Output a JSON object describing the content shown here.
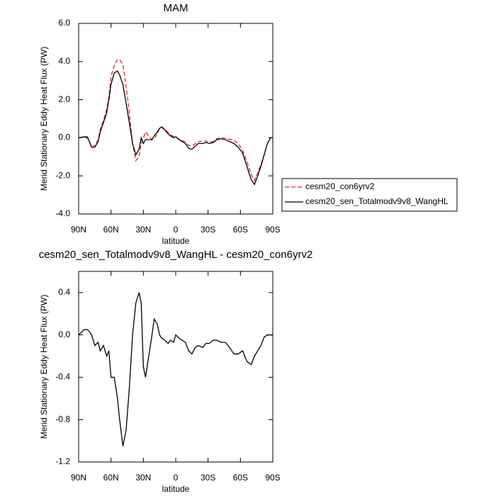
{
  "chart_data": [
    {
      "type": "line",
      "title": "MAM",
      "xlabel": "latitude",
      "ylabel": "Merid Stationary Eddy Heat Flux (PW)",
      "x": [
        90,
        85,
        82,
        80,
        78,
        75,
        72,
        70,
        67,
        64,
        62,
        60,
        57,
        54,
        52,
        49,
        46,
        43,
        40,
        37,
        34,
        32,
        30,
        28,
        25,
        22,
        20,
        17,
        15,
        13,
        10,
        7,
        5,
        2,
        0,
        -3,
        -6,
        -9,
        -12,
        -15,
        -18,
        -21,
        -25,
        -28,
        -31,
        -35,
        -38,
        -42,
        -46,
        -50,
        -54,
        -58,
        -62,
        -66,
        -70,
        -73,
        -76,
        -79,
        -82,
        -85,
        -88,
        -90
      ],
      "series": [
        {
          "name": "cesm20_con6yrv2",
          "color": "#e8262b",
          "dashed": true,
          "values": [
            0,
            0,
            0,
            -0.23,
            -0.5,
            -0.4,
            -0.13,
            0.45,
            0.9,
            1.5,
            2.15,
            3.2,
            3.8,
            4.1,
            4.1,
            3.85,
            2.7,
            1.3,
            -0.3,
            -1.2,
            -1.0,
            -0.3,
            0.0,
            0.3,
            0.1,
            -0.1,
            -0.05,
            0.2,
            0.5,
            0.58,
            0.45,
            0.28,
            0.15,
            0.07,
            0.05,
            -0.07,
            -0.15,
            -0.23,
            -0.4,
            -0.42,
            -0.33,
            -0.2,
            -0.18,
            -0.17,
            -0.22,
            -0.2,
            -0.05,
            0.02,
            -0.03,
            -0.08,
            -0.12,
            -0.32,
            -0.65,
            -1.25,
            -1.92,
            -2.25,
            -1.85,
            -1.4,
            -0.88,
            -0.3,
            0,
            0
          ]
        },
        {
          "name": "cesm20_sen_Totalmodv9v8_WangHL",
          "color": "#000000",
          "dashed": false,
          "values": [
            0,
            0.05,
            0.05,
            -0.2,
            -0.5,
            -0.5,
            -0.2,
            0.3,
            0.8,
            1.3,
            2.0,
            2.8,
            3.4,
            3.5,
            3.3,
            2.8,
            1.8,
            0.8,
            -0.3,
            -0.9,
            -0.6,
            0.0,
            -0.3,
            -0.1,
            -0.1,
            -0.1,
            0.1,
            0.3,
            0.5,
            0.55,
            0.4,
            0.2,
            0.1,
            0.0,
            0.05,
            -0.1,
            -0.2,
            -0.3,
            -0.55,
            -0.6,
            -0.45,
            -0.3,
            -0.3,
            -0.25,
            -0.3,
            -0.25,
            -0.1,
            -0.05,
            -0.1,
            -0.2,
            -0.3,
            -0.5,
            -0.8,
            -1.5,
            -2.2,
            -2.45,
            -2.0,
            -1.5,
            -0.9,
            -0.3,
            0,
            0
          ]
        }
      ],
      "xlim": [
        90,
        -90
      ],
      "xticks": [
        {
          "value": 90,
          "label": "90N"
        },
        {
          "value": 60,
          "label": "60N"
        },
        {
          "value": 30,
          "label": "30N"
        },
        0,
        {
          "value": -30,
          "label": "30S"
        },
        {
          "value": -60,
          "label": "60S"
        },
        {
          "value": -90,
          "label": "90S"
        }
      ],
      "ylim": [
        -4,
        6
      ],
      "yticks": [
        {
          "value": -4,
          "label": "-4.0"
        },
        {
          "value": -2,
          "label": "-2.0"
        },
        {
          "value": 0,
          "label": "0.0"
        },
        {
          "value": 2,
          "label": "2.0"
        },
        {
          "value": 4,
          "label": "4.0"
        },
        {
          "value": 6,
          "label": "6.0"
        }
      ],
      "legend": "right"
    },
    {
      "type": "line",
      "title": "cesm20_sen_Totalmodv9v8_WangHL - cesm20_con6yrv2",
      "xlabel": "latitude",
      "ylabel": "Merid Stationary Eddy Heat Flux (PW)",
      "x": [
        90,
        85,
        82,
        80,
        78,
        75,
        72,
        70,
        67,
        64,
        62,
        60,
        57,
        54,
        52,
        49,
        46,
        43,
        40,
        37,
        34,
        32,
        30,
        28,
        25,
        22,
        20,
        17,
        15,
        13,
        10,
        7,
        5,
        2,
        0,
        -3,
        -6,
        -9,
        -12,
        -15,
        -18,
        -21,
        -25,
        -28,
        -31,
        -35,
        -38,
        -42,
        -46,
        -50,
        -54,
        -58,
        -62,
        -66,
        -70,
        -73,
        -76,
        -79,
        -82,
        -85,
        -88,
        -90
      ],
      "series": [
        {
          "color": "#000000",
          "dashed": false,
          "values": [
            0.0,
            0.05,
            0.05,
            0.03,
            0.0,
            -0.1,
            -0.07,
            -0.15,
            -0.1,
            -0.2,
            -0.15,
            -0.4,
            -0.4,
            -0.6,
            -0.8,
            -1.05,
            -0.9,
            -0.5,
            0.0,
            0.3,
            0.4,
            0.3,
            -0.3,
            -0.4,
            -0.2,
            0.0,
            0.15,
            0.1,
            0.0,
            -0.03,
            -0.05,
            -0.08,
            -0.05,
            -0.07,
            0.0,
            -0.03,
            -0.05,
            -0.07,
            -0.15,
            -0.18,
            -0.12,
            -0.1,
            -0.12,
            -0.08,
            -0.08,
            -0.05,
            -0.05,
            -0.07,
            -0.07,
            -0.12,
            -0.18,
            -0.18,
            -0.15,
            -0.25,
            -0.28,
            -0.2,
            -0.15,
            -0.1,
            -0.02,
            0.0,
            0.0,
            0.0
          ]
        }
      ],
      "xlim": [
        90,
        -90
      ],
      "xticks": [
        {
          "value": 90,
          "label": "90N"
        },
        {
          "value": 60,
          "label": "60N"
        },
        {
          "value": 30,
          "label": "30N"
        },
        0,
        {
          "value": -30,
          "label": "30S"
        },
        {
          "value": -60,
          "label": "60S"
        },
        {
          "value": -90,
          "label": "90S"
        }
      ],
      "ylim": [
        -1.2,
        0.6
      ],
      "yticks": [
        {
          "value": -1.2,
          "label": "-1.2"
        },
        {
          "value": -0.8,
          "label": "-0.8"
        },
        {
          "value": -0.4,
          "label": "-0.4"
        },
        {
          "value": 0,
          "label": "0.0"
        },
        {
          "value": 0.4,
          "label": "0.4"
        }
      ]
    }
  ]
}
